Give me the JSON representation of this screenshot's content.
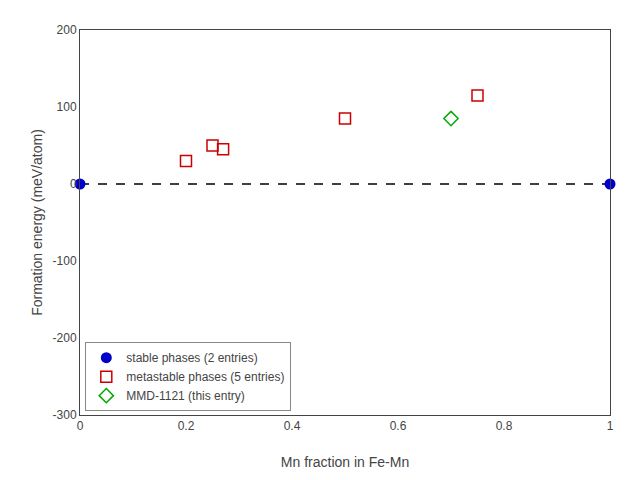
{
  "chart_data": {
    "type": "scatter",
    "xlabel": "Mn fraction in Fe-Mn",
    "ylabel": "Formation energy (meV/atom)",
    "xlim": [
      0.0,
      1.0
    ],
    "ylim": [
      -300,
      200
    ],
    "xticks": [
      0.0,
      0.2,
      0.4,
      0.6,
      0.8,
      1.0
    ],
    "yticks": [
      -300,
      -200,
      -100,
      0,
      100,
      200
    ],
    "grid": false,
    "legend": "lower left",
    "series": [
      {
        "type": "line",
        "color": "black",
        "line_style": "dashed",
        "x": [
          0.0,
          1.0
        ],
        "values": [
          0.0,
          0.0
        ]
      },
      {
        "name": "stable phases (2 entries)",
        "type": "scatter",
        "color": "#0000cc",
        "marker": "circle",
        "x": [
          0.0,
          1.0
        ],
        "values": [
          0.0,
          0.0
        ]
      },
      {
        "name": "metastable phases (5 entries)",
        "type": "scatter",
        "color": "#cc0000",
        "marker": "square-open",
        "x": [
          0.2,
          0.25,
          0.27,
          0.5,
          0.75
        ],
        "values": [
          30,
          50,
          45,
          85,
          115
        ]
      },
      {
        "name": "MMD-1121 (this entry)",
        "type": "scatter",
        "color": "#00aa00",
        "marker": "diamond-open",
        "x": [
          0.7
        ],
        "values": [
          85
        ]
      }
    ]
  }
}
